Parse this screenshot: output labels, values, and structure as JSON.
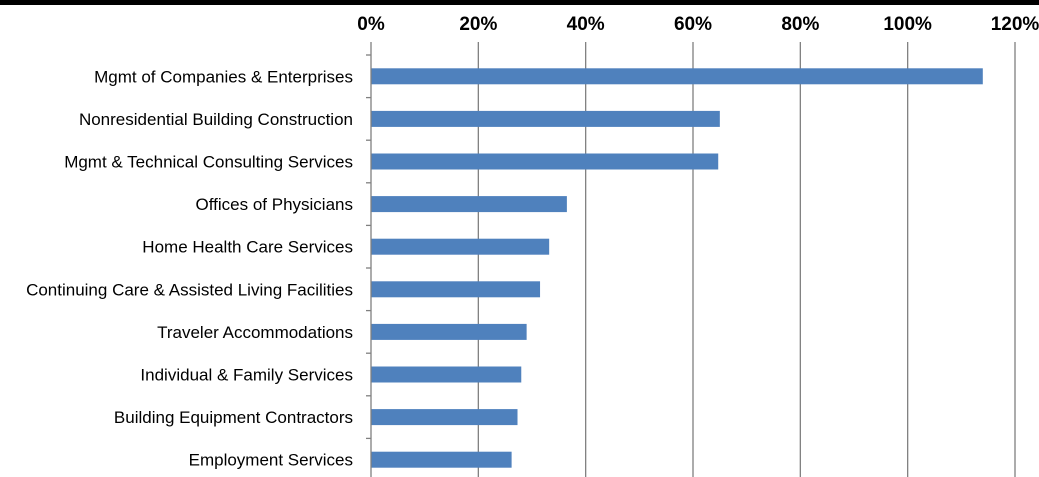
{
  "chart_data": {
    "type": "bar",
    "orientation": "horizontal",
    "categories": [
      "Mgmt of Companies & Enterprises",
      "Nonresidential Building Construction",
      "Mgmt & Technical Consulting Services",
      "Offices of Physicians",
      "Home Health Care Services",
      "Continuing Care & Assisted Living Facilities",
      "Traveler Accommodations",
      "Individual & Family Services",
      "Building Equipment Contractors",
      "Employment Services"
    ],
    "values": [
      114,
      65,
      64.7,
      36.5,
      33.2,
      31.5,
      29,
      28,
      27.3,
      26.2
    ],
    "value_unit": "%",
    "xlim": [
      0,
      120
    ],
    "x_ticks": [
      0,
      20,
      40,
      60,
      80,
      100,
      120
    ],
    "x_tick_labels": [
      "0%",
      "20%",
      "40%",
      "60%",
      "80%",
      "100%",
      "120%"
    ],
    "x_axis_position": "top",
    "grid": "vertical",
    "legend": "none",
    "bar_color": "#4F81BD",
    "grid_color": "#808080",
    "title": "",
    "xlabel": "",
    "ylabel": ""
  }
}
